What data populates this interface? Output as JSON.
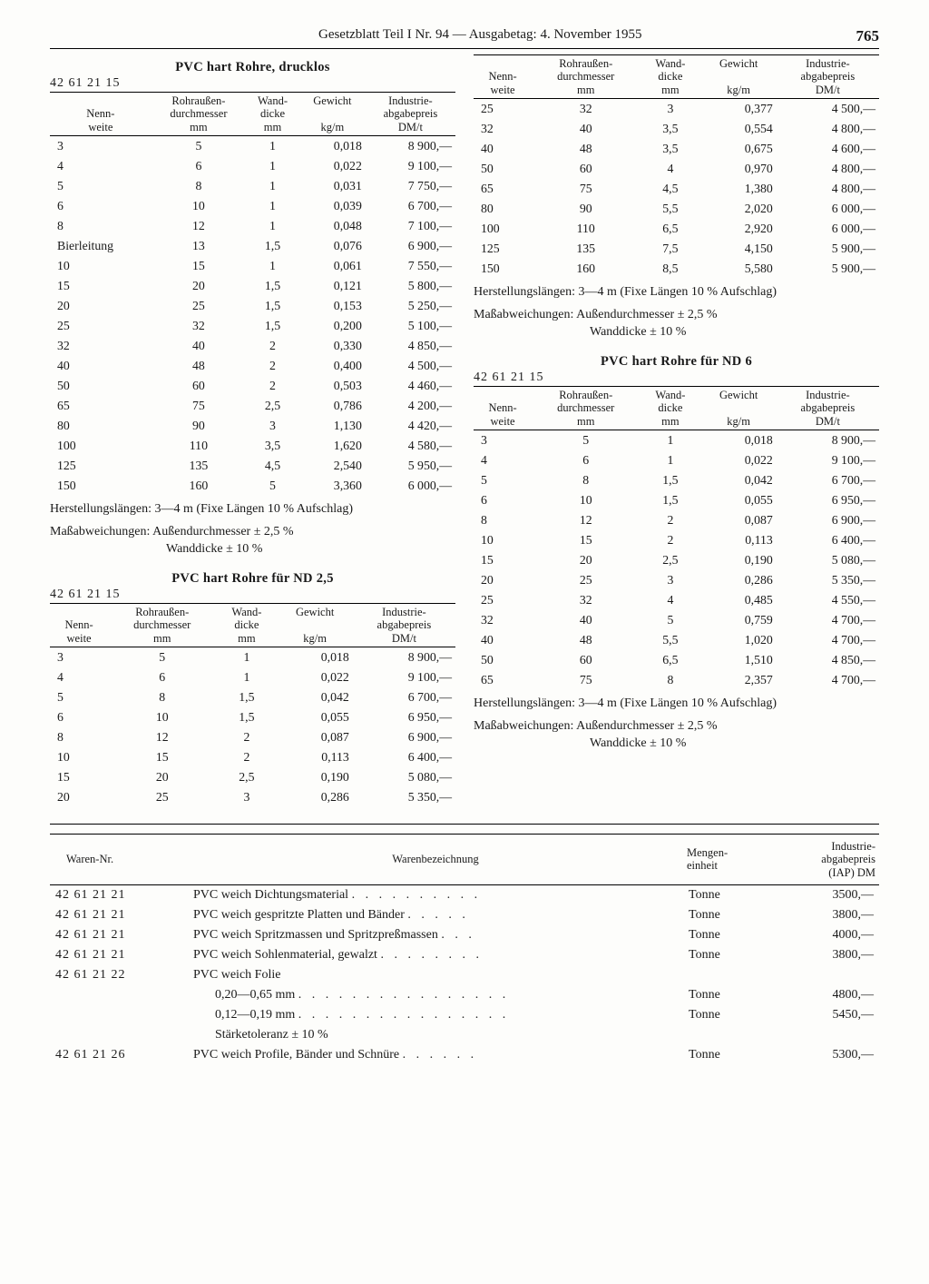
{
  "header": {
    "title": "Gesetzblatt Teil I Nr. 94 — Ausgabetag: 4. November 1955",
    "page": "765"
  },
  "columns": [
    "Nenn-\nweite",
    "Rohraußen-\ndurchmesser\nmm",
    "Wand-\ndicke\nmm",
    "Gewicht\n\nkg/m",
    "Industrie-\nabgabepreis\nDM/t"
  ],
  "note_len": "Herstellungslängen: 3—4 m (Fixe Längen 10 % Aufschlag)",
  "note_tol1": "Maßabweichungen: Außendurchmesser ± 2,5 %",
  "note_tol2": "Wanddicke ± 10 %",
  "code": "42 61 21 15",
  "table1": {
    "title": "PVC hart Rohre, drucklos",
    "rows": [
      [
        "3",
        "5",
        "1",
        "0,018",
        "8 900,—"
      ],
      [
        "4",
        "6",
        "1",
        "0,022",
        "9 100,—"
      ],
      [
        "5",
        "8",
        "1",
        "0,031",
        "7 750,—"
      ],
      [
        "6",
        "10",
        "1",
        "0,039",
        "6 700,—"
      ],
      [
        "8",
        "12",
        "1",
        "0,048",
        "7 100,—"
      ],
      [
        "Bierleitung",
        "13",
        "1,5",
        "0,076",
        "6 900,—"
      ],
      [
        "10",
        "15",
        "1",
        "0,061",
        "7 550,—"
      ],
      [
        "15",
        "20",
        "1,5",
        "0,121",
        "5 800,—"
      ],
      [
        "20",
        "25",
        "1,5",
        "0,153",
        "5 250,—"
      ],
      [
        "25",
        "32",
        "1,5",
        "0,200",
        "5 100,—"
      ],
      [
        "32",
        "40",
        "2",
        "0,330",
        "4 850,—"
      ],
      [
        "40",
        "48",
        "2",
        "0,400",
        "4 500,—"
      ],
      [
        "50",
        "60",
        "2",
        "0,503",
        "4 460,—"
      ],
      [
        "65",
        "75",
        "2,5",
        "0,786",
        "4 200,—"
      ],
      [
        "80",
        "90",
        "3",
        "1,130",
        "4 420,—"
      ],
      [
        "100",
        "110",
        "3,5",
        "1,620",
        "4 580,—"
      ],
      [
        "125",
        "135",
        "4,5",
        "2,540",
        "5 950,—"
      ],
      [
        "150",
        "160",
        "5",
        "3,360",
        "6 000,—"
      ]
    ]
  },
  "table2": {
    "title": "PVC hart Rohre für ND 2,5",
    "rows": [
      [
        "3",
        "5",
        "1",
        "0,018",
        "8 900,—"
      ],
      [
        "4",
        "6",
        "1",
        "0,022",
        "9 100,—"
      ],
      [
        "5",
        "8",
        "1,5",
        "0,042",
        "6 700,—"
      ],
      [
        "6",
        "10",
        "1,5",
        "0,055",
        "6 950,—"
      ],
      [
        "8",
        "12",
        "2",
        "0,087",
        "6 900,—"
      ],
      [
        "10",
        "15",
        "2",
        "0,113",
        "6 400,—"
      ],
      [
        "15",
        "20",
        "2,5",
        "0,190",
        "5 080,—"
      ],
      [
        "20",
        "25",
        "3",
        "0,286",
        "5 350,—"
      ]
    ]
  },
  "table2b": {
    "rows": [
      [
        "25",
        "32",
        "3",
        "0,377",
        "4 500,—"
      ],
      [
        "32",
        "40",
        "3,5",
        "0,554",
        "4 800,—"
      ],
      [
        "40",
        "48",
        "3,5",
        "0,675",
        "4 600,—"
      ],
      [
        "50",
        "60",
        "4",
        "0,970",
        "4 800,—"
      ],
      [
        "65",
        "75",
        "4,5",
        "1,380",
        "4 800,—"
      ],
      [
        "80",
        "90",
        "5,5",
        "2,020",
        "6 000,—"
      ],
      [
        "100",
        "110",
        "6,5",
        "2,920",
        "6 000,—"
      ],
      [
        "125",
        "135",
        "7,5",
        "4,150",
        "5 900,—"
      ],
      [
        "150",
        "160",
        "8,5",
        "5,580",
        "5 900,—"
      ]
    ]
  },
  "table3": {
    "title": "PVC hart Rohre für ND 6",
    "rows": [
      [
        "3",
        "5",
        "1",
        "0,018",
        "8 900,—"
      ],
      [
        "4",
        "6",
        "1",
        "0,022",
        "9 100,—"
      ],
      [
        "5",
        "8",
        "1,5",
        "0,042",
        "6 700,—"
      ],
      [
        "6",
        "10",
        "1,5",
        "0,055",
        "6 950,—"
      ],
      [
        "8",
        "12",
        "2",
        "0,087",
        "6 900,—"
      ],
      [
        "10",
        "15",
        "2",
        "0,113",
        "6 400,—"
      ],
      [
        "15",
        "20",
        "2,5",
        "0,190",
        "5 080,—"
      ],
      [
        "20",
        "25",
        "3",
        "0,286",
        "5 350,—"
      ],
      [
        "25",
        "32",
        "4",
        "0,485",
        "4 550,—"
      ],
      [
        "32",
        "40",
        "5",
        "0,759",
        "4 700,—"
      ],
      [
        "40",
        "48",
        "5,5",
        "1,020",
        "4 700,—"
      ],
      [
        "50",
        "60",
        "6,5",
        "1,510",
        "4 850,—"
      ],
      [
        "65",
        "75",
        "8",
        "2,357",
        "4 700,—"
      ]
    ]
  },
  "waren": {
    "columns": [
      "Waren-Nr.",
      "Warenbezeichnung",
      "Mengen-\neinheit",
      "Industrie-\nabgabepreis\n(IAP)  DM"
    ],
    "rows": [
      {
        "nr": "42 61 21 21",
        "desc": "PVC weich Dichtungsmaterial",
        "dots": ". . . . . . . . . .",
        "unit": "Tonne",
        "price": "3500,—"
      },
      {
        "nr": "42 61 21 21",
        "desc": "PVC weich gespritzte Platten und Bänder",
        "dots": ". . . . .",
        "unit": "Tonne",
        "price": "3800,—"
      },
      {
        "nr": "42 61 21 21",
        "desc": "PVC weich Spritzmassen und Spritzpreßmassen",
        "dots": ". . .",
        "unit": "Tonne",
        "price": "4000,—"
      },
      {
        "nr": "42 61 21 21",
        "desc": "PVC weich Sohlenmaterial, gewalzt",
        "dots": ". . . . . . . .",
        "unit": "Tonne",
        "price": "3800,—"
      },
      {
        "nr": "42 61 21 22",
        "desc": "PVC weich Folie",
        "dots": "",
        "unit": "",
        "price": ""
      },
      {
        "nr": "",
        "desc": "0,20—0,65 mm",
        "sub": true,
        "dots": ". . . . . . . . . . . . . . . .",
        "unit": "Tonne",
        "price": "4800,—"
      },
      {
        "nr": "",
        "desc": "0,12—0,19 mm",
        "sub": true,
        "dots": ". . . . . . . . . . . . . . . .",
        "unit": "Tonne",
        "price": "5450,—"
      },
      {
        "nr": "",
        "desc": "Stärketoleranz ± 10 %",
        "sub": true,
        "dots": "",
        "unit": "",
        "price": ""
      },
      {
        "nr": "42 61 21 26",
        "desc": "PVC weich Profile, Bänder und Schnüre",
        "dots": ". . . . . .",
        "unit": "Tonne",
        "price": "5300,—"
      }
    ]
  }
}
